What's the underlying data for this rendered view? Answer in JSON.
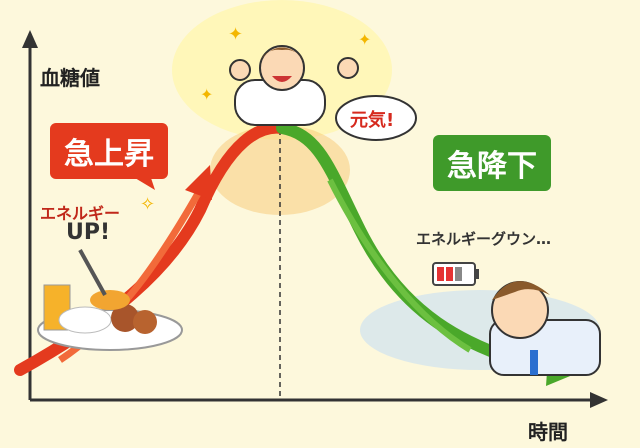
{
  "axes": {
    "y_label": "血糖値",
    "x_label": "時間"
  },
  "callouts": {
    "rise": "急上昇",
    "fall": "急降下",
    "energetic": "元気!",
    "energy_up_line1": "エネルギー",
    "energy_up_line2": "UP!",
    "energy_down": "エネルギーグウン…"
  },
  "colors": {
    "rise": "#e43a1e",
    "fall": "#4aa82a",
    "background": "#fdf8dc",
    "axis": "#333333"
  }
}
